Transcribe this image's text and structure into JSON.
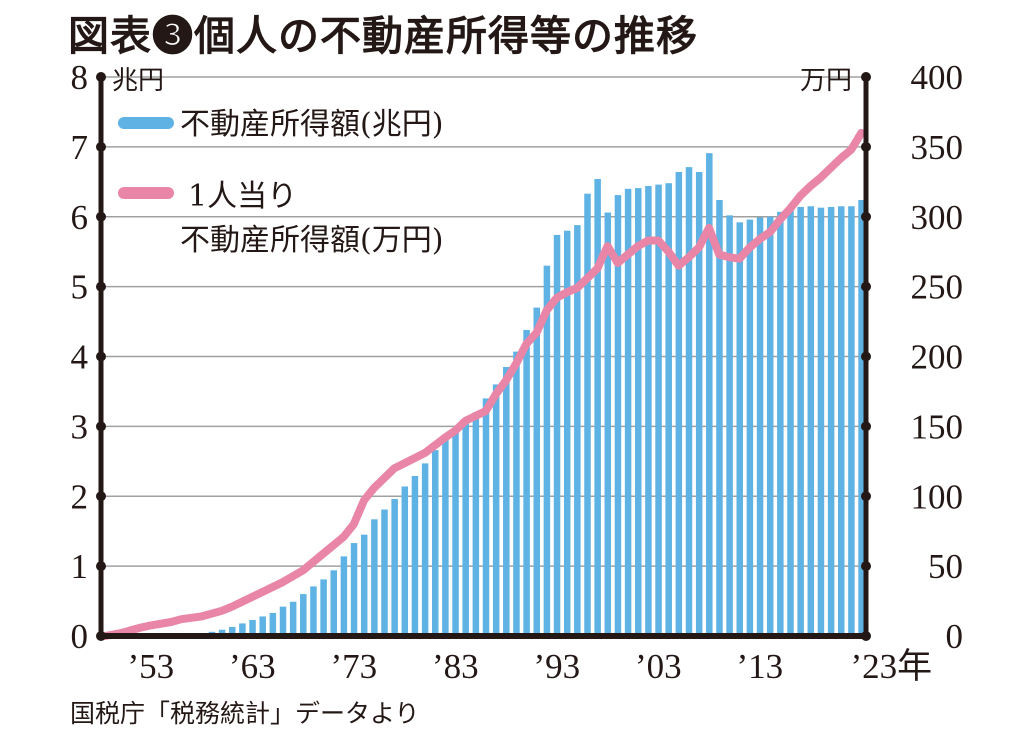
{
  "chart_data": {
    "type": "bar+line",
    "title": "図表❸個人の不動産所得等の推移",
    "source": "国税庁「税務統計」データより",
    "left_axis": {
      "unit": "兆円",
      "range": [
        0,
        8
      ],
      "ticks": [
        "0",
        "1",
        "2",
        "3",
        "4",
        "5",
        "6",
        "7",
        "8"
      ]
    },
    "right_axis": {
      "unit": "万円",
      "range": [
        0,
        400
      ],
      "ticks": [
        "0",
        "50",
        "100",
        "150",
        "200",
        "250",
        "300",
        "350",
        "400"
      ]
    },
    "x_ticks": [
      {
        "year": 1953,
        "label": "’53"
      },
      {
        "year": 1963,
        "label": "’63"
      },
      {
        "year": 1973,
        "label": "’73"
      },
      {
        "year": 1983,
        "label": "’83"
      },
      {
        "year": 1993,
        "label": "’93"
      },
      {
        "year": 2003,
        "label": "’03"
      },
      {
        "year": 2013,
        "label": "’13"
      },
      {
        "year": 2023,
        "label": "’23年"
      }
    ],
    "grid": true,
    "legend_placement": "top-left",
    "series": [
      {
        "name": "不動産所得額(兆円)",
        "type": "bar",
        "axis": "left",
        "color": "#5eb2e4",
        "x": [
          1959,
          1960,
          1961,
          1962,
          1963,
          1964,
          1965,
          1966,
          1967,
          1968,
          1969,
          1970,
          1971,
          1972,
          1973,
          1974,
          1975,
          1976,
          1977,
          1978,
          1979,
          1980,
          1981,
          1982,
          1983,
          1984,
          1985,
          1986,
          1987,
          1988,
          1989,
          1990,
          1991,
          1992,
          1993,
          1994,
          1995,
          1996,
          1997,
          1998,
          1999,
          2000,
          2001,
          2002,
          2003,
          2004,
          2005,
          2006,
          2007,
          2008,
          2009,
          2010,
          2011,
          2012,
          2013,
          2014,
          2015,
          2016,
          2017,
          2018,
          2019,
          2020,
          2021,
          2022,
          2023
        ],
        "values": [
          0.06,
          0.09,
          0.13,
          0.18,
          0.23,
          0.28,
          0.33,
          0.42,
          0.49,
          0.6,
          0.71,
          0.81,
          0.94,
          1.14,
          1.33,
          1.45,
          1.67,
          1.81,
          1.96,
          2.14,
          2.29,
          2.47,
          2.66,
          2.83,
          2.96,
          3.05,
          3.2,
          3.4,
          3.6,
          3.85,
          4.07,
          4.38,
          4.7,
          5.3,
          5.74,
          5.8,
          5.88,
          6.33,
          6.54,
          6.06,
          6.31,
          6.4,
          6.41,
          6.44,
          6.46,
          6.48,
          6.64,
          6.71,
          6.64,
          6.91,
          6.24,
          6.02,
          5.92,
          5.96,
          5.99,
          6.0,
          6.07,
          6.12,
          6.14,
          6.15,
          6.13,
          6.14,
          6.15,
          6.15,
          6.24
        ]
      },
      {
        "name": "1人当り\n不動産所得額(万円)",
        "name_lines": [
          "1人当り",
          "不動産所得額(万円)"
        ],
        "type": "line",
        "axis": "right",
        "color": "#e986a8",
        "x": [
          1948.5,
          1950,
          1951,
          1952,
          1953,
          1955,
          1956,
          1958,
          1960,
          1961,
          1963,
          1966,
          1968,
          1970,
          1972,
          1973,
          1974,
          1975,
          1977,
          1980,
          1982,
          1983,
          1984,
          1986,
          1987,
          1988,
          1989,
          1990,
          1991,
          1992,
          1993,
          1994,
          1995,
          1996,
          1997,
          1998,
          1999,
          2000,
          2001,
          2002,
          2003,
          2004,
          2005,
          2006,
          2007,
          2008,
          2009,
          2010,
          2011,
          2012,
          2013,
          2014,
          2015,
          2016,
          2017,
          2018,
          2019,
          2020,
          2021,
          2022,
          2023
        ],
        "values": [
          0,
          2,
          4,
          6,
          7.6,
          10,
          12,
          14,
          18,
          21,
          28,
          38.6,
          47,
          59,
          71,
          80,
          97,
          106,
          120,
          131,
          142,
          147,
          154,
          161,
          173,
          183,
          195,
          209,
          217,
          233,
          242,
          246,
          249,
          256,
          263,
          279,
          267,
          273,
          279,
          283,
          283,
          275,
          265,
          271,
          278,
          292,
          273,
          271,
          270,
          278,
          284,
          289,
          298,
          306,
          315,
          322,
          328,
          335,
          342,
          348,
          360
        ]
      }
    ]
  }
}
